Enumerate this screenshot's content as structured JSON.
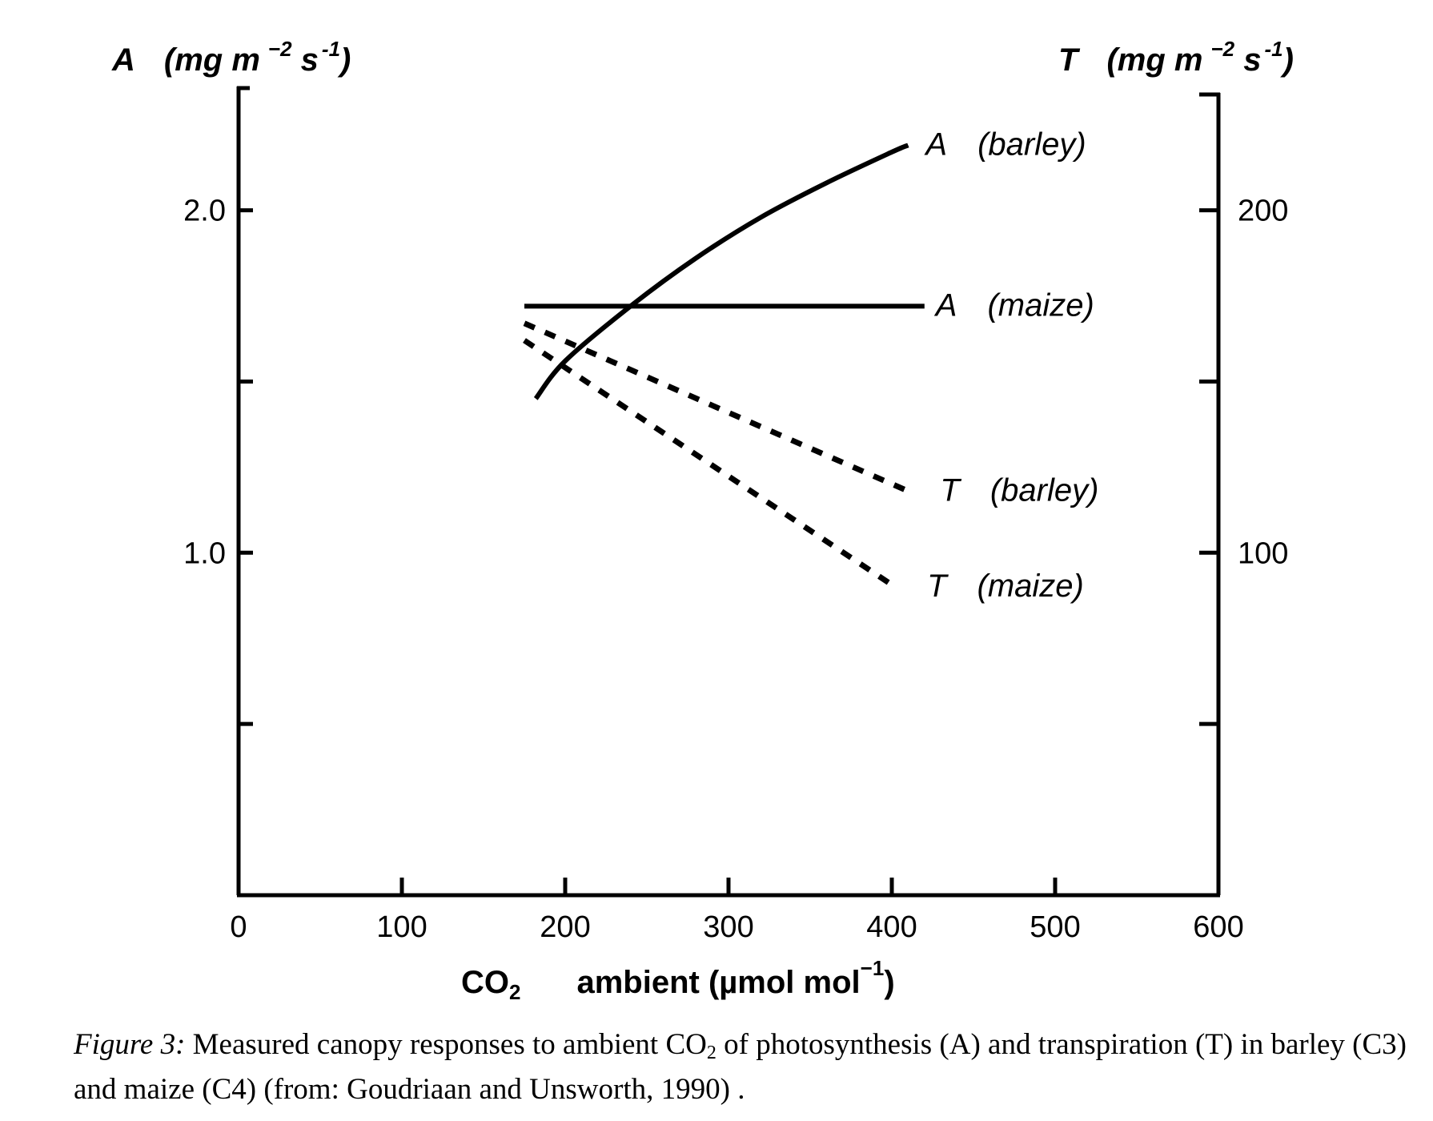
{
  "chart_data": {
    "type": "line",
    "xlabel": {
      "main": "CO",
      "sub": "2",
      "rest": "ambient (µmol mol",
      "sup": "−1",
      "close": ")"
    },
    "ylabel_left": {
      "symbol": "A",
      "unit": "(mg m",
      "sup1": "−2",
      "mid": " s",
      "sup2": "-1",
      "close": ")"
    },
    "ylabel_right": {
      "symbol": "T",
      "unit": "(mg m",
      "sup1": "−2",
      "mid": " s",
      "sup2": "-1",
      "close": ")"
    },
    "xlim": [
      0,
      600
    ],
    "ylim_left": [
      0,
      2.6
    ],
    "ylim_right": [
      0,
      260
    ],
    "x_ticks": [
      0,
      100,
      200,
      300,
      400,
      500,
      600
    ],
    "x_tick_labels": [
      "0",
      "100",
      "200",
      "300",
      "400",
      "500",
      "600"
    ],
    "y_left_ticks": [
      0.5,
      1.0,
      1.5,
      2.0
    ],
    "y_left_tick_labels": [
      "",
      "1.0",
      "",
      "2.0"
    ],
    "y_right_ticks": [
      50,
      100,
      150,
      200
    ],
    "y_right_tick_labels": [
      "",
      "100",
      "",
      "200"
    ],
    "grid": false,
    "series": [
      {
        "name": "A (barley)",
        "label_symbol": "A",
        "label_text": "(barley)",
        "axis": "left",
        "style": "solid",
        "x": [
          182,
          200,
          240,
          280,
          320,
          360,
          400,
          410
        ],
        "y": [
          1.45,
          1.56,
          1.72,
          1.86,
          1.98,
          2.08,
          2.17,
          2.19
        ]
      },
      {
        "name": "A (maize)",
        "label_symbol": "A",
        "label_text": "(maize)",
        "axis": "left",
        "style": "solid",
        "x": [
          175,
          420
        ],
        "y": [
          1.72,
          1.72
        ]
      },
      {
        "name": "T (barley)",
        "label_symbol": "T",
        "label_text": "(barley)",
        "axis": "right",
        "style": "dashed",
        "x": [
          175,
          410
        ],
        "y": [
          167,
          118
        ]
      },
      {
        "name": "T (maize)",
        "label_symbol": "T",
        "label_text": "(maize)",
        "axis": "right",
        "style": "dashed",
        "x": [
          175,
          402
        ],
        "y": [
          162,
          90
        ]
      }
    ]
  },
  "caption": {
    "figure_label": "Figure 3:",
    "text_before_sub": " Measured canopy responses to ambient CO",
    "sub": "2",
    "text_after_sub": " of photosynthesis (A) and transpiration (T) in barley (C3) and maize (C4) (from: Goudriaan and Unsworth, 1990) ."
  }
}
